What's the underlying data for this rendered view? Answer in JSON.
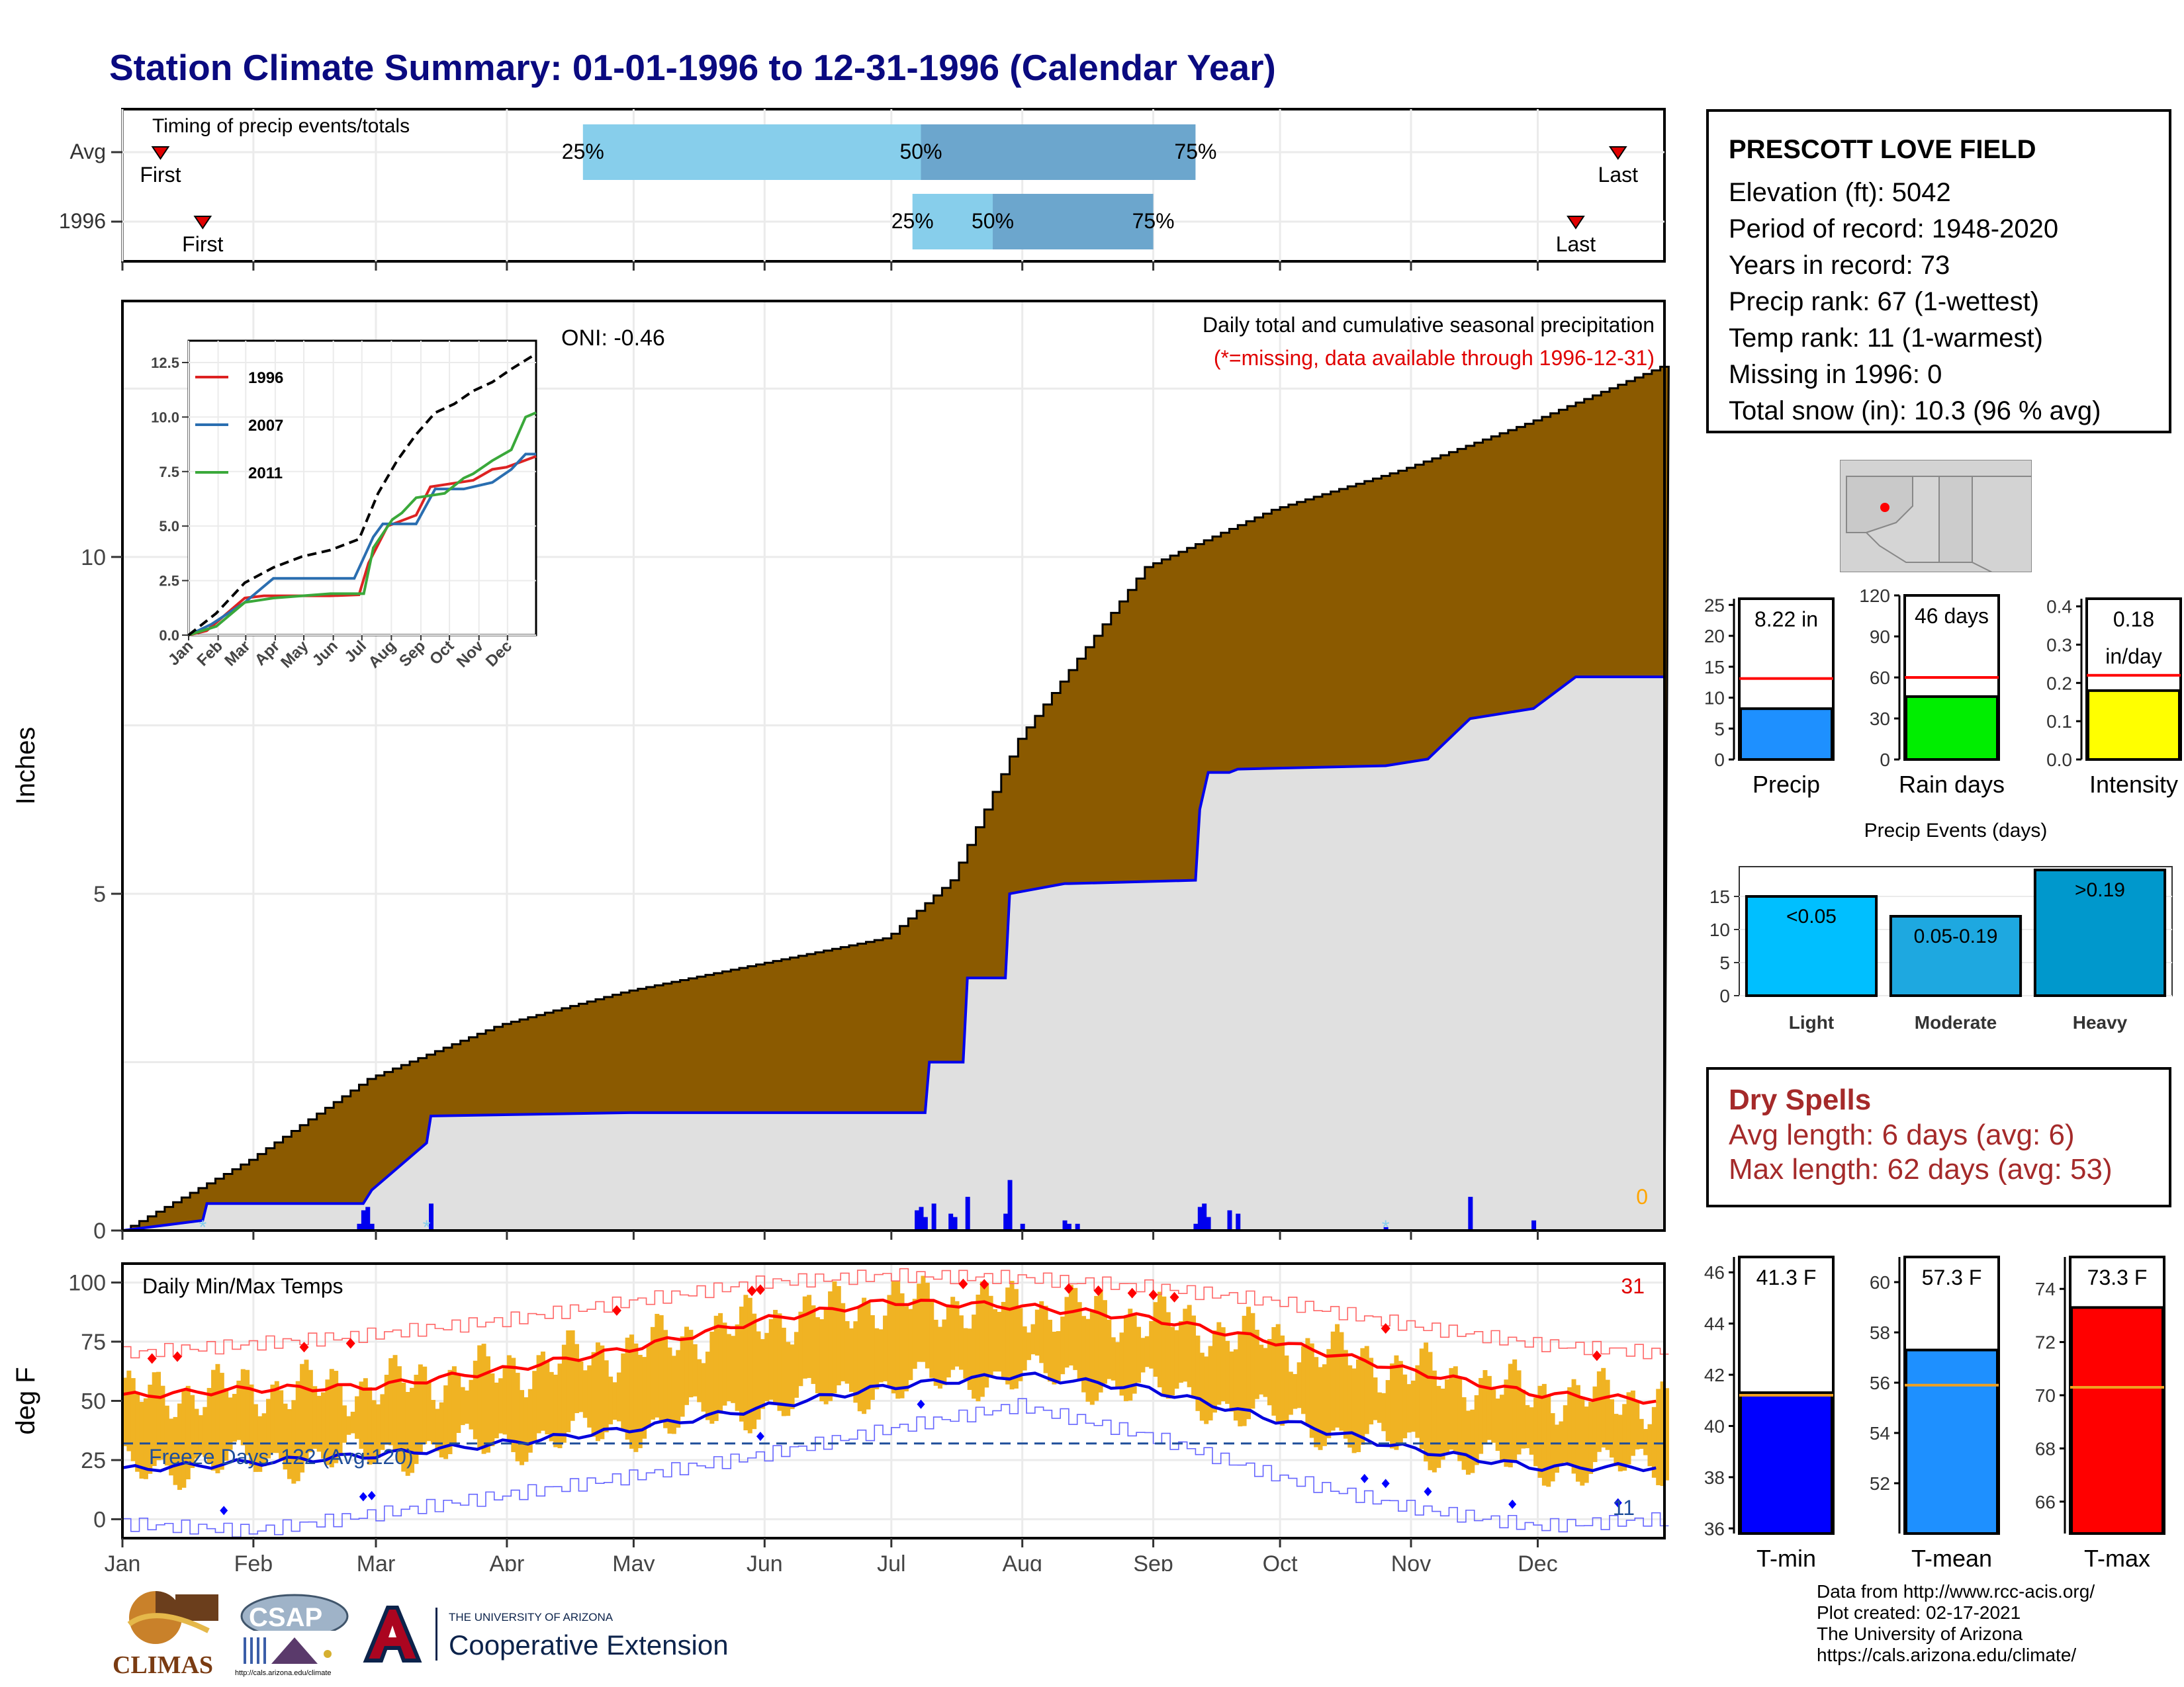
{
  "title": "Station Climate Summary: 01-01-1996 to 12-31-1996 (Calendar Year)",
  "timing": {
    "label": "Timing of precip events/totals",
    "rows": [
      {
        "name": "Avg",
        "first_label": "First",
        "last_label": "Last",
        "first_doy": 10,
        "last_doy": 355,
        "q25": 110,
        "q50": 190,
        "q75": 255,
        "q25_label": "25%",
        "q50_label": "50%",
        "q75_label": "75%"
      },
      {
        "name": "1996",
        "first_label": "First",
        "last_label": "Last",
        "first_doy": 20,
        "last_doy": 345,
        "q25": 188,
        "q50": 207,
        "q75": 245,
        "q25_label": "25%",
        "q50_label": "50%",
        "q75_label": "75%"
      }
    ],
    "colors": {
      "light": "#87ceeb",
      "dark": "#6ca6cd",
      "marker": "#e00000"
    }
  },
  "station": {
    "name": "PRESCOTT LOVE FIELD",
    "lines": [
      "Elevation (ft): 5042",
      "Period of record: 1948-2020",
      "Years in record: 73",
      "Precip rank: 67 (1-wettest)",
      "Temp rank: 11 (1-warmest)",
      "Missing in 1996: 0",
      "Total snow (in): 10.3 (96 % avg)"
    ]
  },
  "main_chart": {
    "ylabel": "Inches",
    "oni": "ONI: -0.46",
    "annot1": "Daily total and cumulative seasonal precipitation",
    "annot2": "(*=missing, data available through 1996-12-31)",
    "zero_label": "0",
    "y_ticks": [
      "0",
      "5",
      "10"
    ],
    "month_ticks": [
      "Jan",
      "Feb",
      "Mar",
      "Apr",
      "May",
      "Jun",
      "Jul",
      "Aug",
      "Sep",
      "Oct",
      "Nov",
      "Dec"
    ]
  },
  "chart_data": [
    {
      "type": "area",
      "title": "Daily total and cumulative seasonal precipitation",
      "ylabel": "Inches",
      "ylim": [
        0,
        13.8
      ],
      "x_unit": "day of year",
      "series": [
        {
          "name": "Average cumulative",
          "color": "#8b5a00",
          "x": [
            1,
            31,
            59,
            90,
            120,
            151,
            182,
            197,
            213,
            243,
            273,
            304,
            334,
            366
          ],
          "y": [
            0.0,
            1.05,
            2.25,
            3.05,
            3.55,
            3.95,
            4.35,
            5.2,
            7.3,
            9.85,
            10.7,
            11.3,
            12.0,
            12.85
          ]
        },
        {
          "name": "1996 cumulative",
          "color": "#0000ee",
          "x": [
            1,
            20,
            21,
            58,
            60,
            73,
            74,
            121,
            151,
            191,
            192,
            200,
            201,
            210,
            211,
            224,
            225,
            255,
            256,
            258,
            263,
            265,
            300,
            310,
            320,
            335,
            345,
            366
          ],
          "y": [
            0.0,
            0.15,
            0.4,
            0.4,
            0.6,
            1.3,
            1.7,
            1.75,
            1.75,
            1.75,
            2.5,
            2.5,
            3.75,
            3.75,
            5.0,
            5.15,
            5.15,
            5.2,
            6.25,
            6.8,
            6.8,
            6.85,
            6.9,
            7.0,
            7.6,
            7.75,
            8.22,
            8.22
          ]
        },
        {
          "name": "Daily precip",
          "color": "#0000ee",
          "x": [
            57,
            58,
            59,
            60,
            74,
            189,
            190,
            191,
            193,
            197,
            198,
            201,
            210,
            211,
            214,
            224,
            225,
            227,
            255,
            256,
            257,
            258,
            263,
            265,
            300,
            320,
            335
          ],
          "y": [
            0.1,
            0.3,
            0.35,
            0.1,
            0.4,
            0.3,
            0.35,
            0.2,
            0.4,
            0.25,
            0.2,
            0.5,
            0.25,
            0.75,
            0.1,
            0.15,
            0.1,
            0.1,
            0.1,
            0.35,
            0.4,
            0.2,
            0.3,
            0.25,
            0.05,
            0.5,
            0.15
          ]
        }
      ]
    },
    {
      "type": "line",
      "title": "",
      "xlabel": "",
      "ylabel": "",
      "ylim": [
        0,
        13.5
      ],
      "x_ticks": [
        "Jan",
        "Feb",
        "Mar",
        "Apr",
        "May",
        "Jun",
        "Jul",
        "Aug",
        "Sep",
        "Oct",
        "Nov",
        "Dec"
      ],
      "y_ticks": [
        "0.0",
        "2.5",
        "5.0",
        "7.5",
        "10.0",
        "12.5"
      ],
      "series": [
        {
          "name": "1996",
          "color": "#dd2222",
          "x": [
            1,
            20,
            60,
            80,
            150,
            180,
            190,
            210,
            240,
            255,
            270,
            300,
            320,
            335,
            366
          ],
          "y": [
            0,
            0.2,
            1.7,
            1.8,
            1.8,
            1.85,
            3.3,
            5.0,
            5.5,
            6.8,
            6.9,
            7.1,
            7.6,
            7.7,
            8.2
          ]
        },
        {
          "name": "2007",
          "color": "#2a6eb0",
          "x": [
            1,
            25,
            60,
            90,
            150,
            175,
            195,
            205,
            215,
            240,
            260,
            290,
            320,
            340,
            355,
            366
          ],
          "y": [
            0,
            0.5,
            1.5,
            2.6,
            2.6,
            2.6,
            4.5,
            5.1,
            5.1,
            5.1,
            6.7,
            6.7,
            7.0,
            7.6,
            8.3,
            8.3
          ]
        },
        {
          "name": "2011",
          "color": "#3aa83a",
          "x": [
            1,
            30,
            60,
            90,
            150,
            185,
            195,
            215,
            225,
            240,
            270,
            290,
            300,
            320,
            340,
            355,
            366
          ],
          "y": [
            0,
            0.4,
            1.5,
            1.7,
            1.9,
            1.9,
            4.0,
            5.3,
            5.6,
            6.3,
            6.5,
            7.2,
            7.4,
            8.0,
            8.5,
            10.0,
            10.2
          ]
        },
        {
          "name": "Average",
          "color": "#000000",
          "dashed": true,
          "x": [
            1,
            30,
            60,
            90,
            120,
            150,
            180,
            200,
            220,
            240,
            260,
            280,
            300,
            320,
            340,
            366
          ],
          "y": [
            0,
            1.0,
            2.4,
            3.1,
            3.6,
            3.9,
            4.4,
            6.5,
            8.0,
            9.2,
            10.2,
            10.6,
            11.2,
            11.6,
            12.2,
            12.9
          ]
        }
      ]
    },
    {
      "type": "bar",
      "title": "",
      "categories": [
        "Precip"
      ],
      "values": [
        8.22
      ],
      "value_label": "8.22 in",
      "average": 13.1,
      "ylim": [
        0,
        26
      ],
      "y_ticks": [
        "0",
        "5",
        "10",
        "15",
        "20",
        "25"
      ],
      "color": "#1e90ff"
    },
    {
      "type": "bar",
      "title": "",
      "categories": [
        "Rain days"
      ],
      "values": [
        46
      ],
      "value_label": "46 days",
      "average": 60,
      "ylim": [
        0,
        120
      ],
      "y_ticks": [
        "0",
        "30",
        "60",
        "90",
        "120"
      ],
      "color": "#00ee00"
    },
    {
      "type": "bar",
      "title": "",
      "categories": [
        "Intensity"
      ],
      "values": [
        0.18
      ],
      "value_label_top": "0.18",
      "value_label_bottom": "in/day",
      "average": 0.22,
      "ylim": [
        0,
        0.42
      ],
      "y_ticks": [
        "0.0",
        "0.1",
        "0.2",
        "0.3",
        "0.4"
      ],
      "color": "#ffff00"
    },
    {
      "type": "bar",
      "title": "Precip Events (days)",
      "categories": [
        "Light",
        "Moderate",
        "Heavy"
      ],
      "values": [
        15,
        12,
        19
      ],
      "bar_labels": [
        "<0.05",
        "0.05-0.19",
        ">0.19"
      ],
      "colors": [
        "#00bfff",
        "#1ea8e0",
        "#0098cc"
      ],
      "ylim": [
        0,
        19.5
      ],
      "y_ticks": [
        "0",
        "5",
        "10",
        "15"
      ]
    },
    {
      "type": "line",
      "title": "Daily Min/Max Temps",
      "ylabel": "deg F",
      "ylim": [
        -8,
        108
      ],
      "y_ticks": [
        "0",
        "25",
        "50",
        "75",
        "100"
      ],
      "freeze_label": "Freeze Days: 122 (Avg:120)",
      "record_high_count": "31",
      "record_low_count": "11",
      "freeze_line": 32,
      "series": [
        {
          "name": "Avg max",
          "color": "#ff0000",
          "x": [
            1,
            32,
            60,
            91,
            121,
            152,
            182,
            213,
            244,
            274,
            305,
            335,
            366
          ],
          "y": [
            52,
            55,
            56,
            63,
            72,
            84,
            92,
            90,
            85,
            75,
            63,
            53,
            50
          ]
        },
        {
          "name": "Avg min",
          "color": "#0000dd",
          "x": [
            1,
            32,
            60,
            91,
            121,
            152,
            182,
            213,
            244,
            274,
            305,
            335,
            366
          ],
          "y": [
            21,
            24,
            27,
            32,
            38,
            47,
            56,
            61,
            55,
            42,
            30,
            22,
            22
          ]
        },
        {
          "name": "Record max",
          "color": "#ff6666",
          "x": [
            1,
            32,
            60,
            91,
            121,
            152,
            182,
            213,
            244,
            274,
            305,
            335,
            366
          ],
          "y": [
            70,
            74,
            78,
            84,
            92,
            100,
            103,
            102,
            98,
            92,
            82,
            74,
            70
          ]
        },
        {
          "name": "Record min",
          "color": "#6666ff",
          "x": [
            1,
            32,
            60,
            91,
            121,
            152,
            182,
            213,
            244,
            274,
            305,
            335,
            366
          ],
          "y": [
            -2,
            -5,
            2,
            10,
            18,
            27,
            38,
            48,
            35,
            18,
            5,
            -3,
            0
          ]
        }
      ]
    },
    {
      "type": "bar",
      "title": "",
      "categories": [
        "T-min"
      ],
      "values": [
        41.3
      ],
      "value_label": "41.3 F",
      "average": 41.2,
      "ylim": [
        35.8,
        46.6
      ],
      "y_ticks": [
        "36",
        "38",
        "40",
        "42",
        "44",
        "46"
      ],
      "color": "#0000ff"
    },
    {
      "type": "bar",
      "title": "",
      "categories": [
        "T-mean"
      ],
      "values": [
        57.3
      ],
      "value_label": "57.3 F",
      "average": 55.9,
      "ylim": [
        50.0,
        61.0
      ],
      "y_ticks": [
        "52",
        "54",
        "56",
        "58",
        "60"
      ],
      "color": "#1e90ff"
    },
    {
      "type": "bar",
      "title": "",
      "categories": [
        "T-max"
      ],
      "values": [
        73.3
      ],
      "value_label": "73.3 F",
      "average": 70.3,
      "ylim": [
        64.8,
        75.2
      ],
      "y_ticks": [
        "66",
        "68",
        "70",
        "72",
        "74"
      ],
      "color": "#ff0000"
    }
  ],
  "dry_spells": {
    "title": "Dry Spells",
    "line1": "Avg length: 6 days (avg: 6)",
    "line2": "Max length: 62 days (avg: 53)",
    "color": "#a52a2a"
  },
  "logos": {
    "climas": "CLIMAS",
    "csap": "CSAP",
    "csap_url": "http://cals.arizona.edu/climate",
    "ua_small": "THE UNIVERSITY OF ARIZONA",
    "ua_big": "Cooperative Extension"
  },
  "footer": [
    "Data from http://www.rcc-acis.org/",
    "Plot created: 02-17-2021",
    "The University of Arizona",
    "https://cals.arizona.edu/climate/"
  ]
}
